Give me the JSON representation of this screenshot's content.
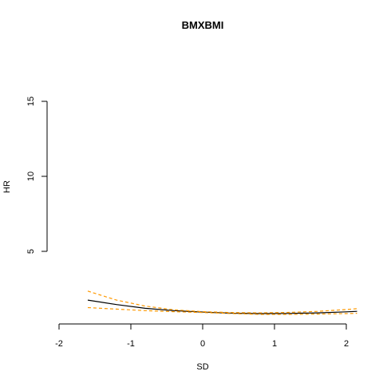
{
  "chart_data": {
    "type": "line",
    "title": "BMXBMI",
    "xlabel": "SD",
    "ylabel": "HR",
    "xlim": [
      -2,
      2.2
    ],
    "ylim": [
      0,
      16
    ],
    "x_ticks": [
      -2,
      -1,
      0,
      1,
      2
    ],
    "x_tick_labels": [
      "-2",
      "-1",
      "0",
      "1",
      "2"
    ],
    "y_ticks": [
      5,
      10,
      15
    ],
    "y_tick_labels": [
      "5",
      "10",
      "15"
    ],
    "grid": false,
    "legend": "none",
    "colors": {
      "estimate": "#000000",
      "ci": "#FF9900"
    },
    "x": [
      -1.6,
      -1.2,
      -0.8,
      -0.4,
      0.0,
      0.4,
      0.8,
      1.2,
      1.6,
      2.0,
      2.15
    ],
    "series": [
      {
        "key": "estimate",
        "style": "solid",
        "values": [
          1.75,
          1.45,
          1.2,
          1.05,
          0.95,
          0.88,
          0.85,
          0.86,
          0.9,
          0.97,
          1.0
        ]
      },
      {
        "key": "ci_upper",
        "style": "dashed",
        "values": [
          2.35,
          1.75,
          1.35,
          1.1,
          0.98,
          0.92,
          0.9,
          0.93,
          1.0,
          1.12,
          1.18
        ]
      },
      {
        "key": "ci_lower",
        "style": "dashed",
        "values": [
          1.25,
          1.15,
          1.05,
          0.98,
          0.92,
          0.85,
          0.8,
          0.8,
          0.82,
          0.85,
          0.87
        ]
      }
    ]
  }
}
